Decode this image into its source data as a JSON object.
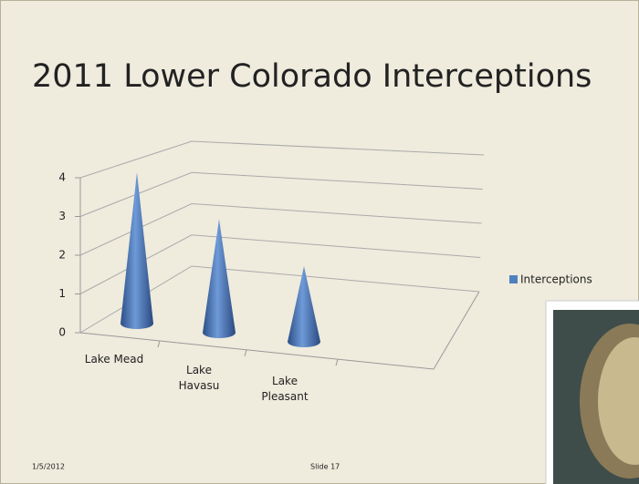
{
  "slide": {
    "date": "1/5/2012",
    "number": "Slide 17"
  },
  "chart_data": {
    "type": "cone",
    "title": "2011 Lower Colorado Interceptions",
    "categories": [
      "Lake Mead",
      "Lake Havasu",
      "Lake Pleasant"
    ],
    "series": [
      {
        "name": "Interceptions",
        "color": "#4f81bd",
        "values": [
          4,
          3,
          2
        ]
      }
    ],
    "ylim": [
      0,
      4
    ],
    "yticks": [
      0,
      1,
      2,
      3,
      4
    ],
    "grid": true,
    "legend": "right"
  }
}
